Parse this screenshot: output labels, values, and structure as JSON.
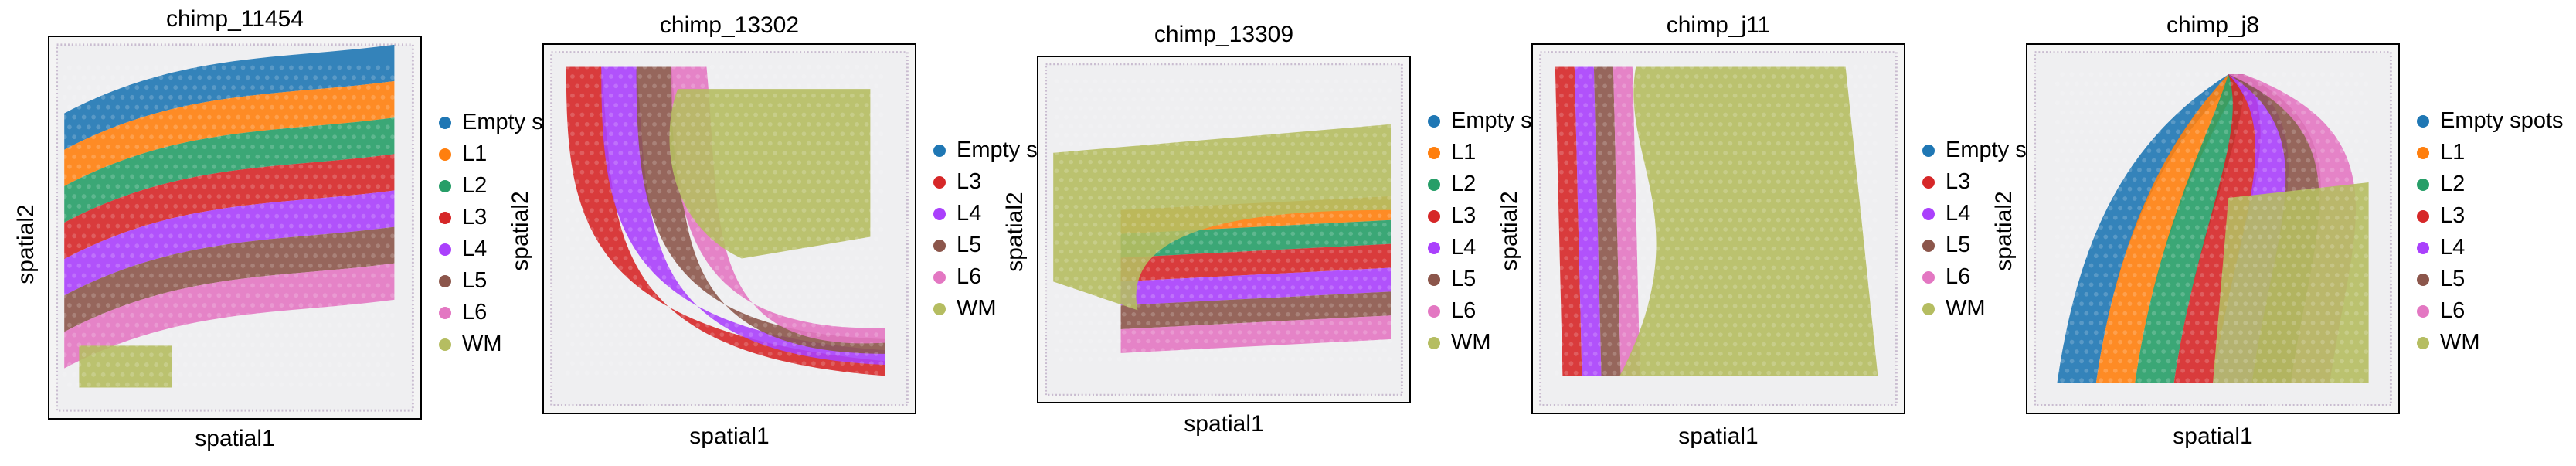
{
  "chart_data": [
    {
      "type": "scatter",
      "title": "chimp_11454",
      "xlabel": "spatial1",
      "ylabel": "spatial2",
      "legend": [
        "Empty s",
        "L1",
        "L2",
        "L3",
        "L4",
        "L5",
        "L6",
        "WM"
      ],
      "layers_top_to_bottom": [
        "Empty s",
        "L1",
        "L2",
        "L3",
        "L4",
        "L5",
        "L6",
        "WM"
      ]
    },
    {
      "type": "scatter",
      "title": "chimp_13302",
      "xlabel": "spatial1",
      "ylabel": "spatial2",
      "legend": [
        "Empty s",
        "L3",
        "L4",
        "L5",
        "L6",
        "WM"
      ],
      "layers_top_to_bottom": [
        "L3",
        "L4",
        "L5",
        "L6",
        "WM"
      ]
    },
    {
      "type": "scatter",
      "title": "chimp_13309",
      "xlabel": "spatial1",
      "ylabel": "spatial2",
      "legend": [
        "Empty s",
        "L1",
        "L2",
        "L3",
        "L4",
        "L5",
        "L6",
        "WM"
      ],
      "layers_top_to_bottom": [
        "L1",
        "L2",
        "L3",
        "L4",
        "L5",
        "L6",
        "WM"
      ]
    },
    {
      "type": "scatter",
      "title": "chimp_j11",
      "xlabel": "spatial1",
      "ylabel": "spatial2",
      "legend": [
        "Empty s",
        "L3",
        "L4",
        "L5",
        "L6",
        "WM"
      ],
      "layers_top_to_bottom": [
        "L3",
        "L4",
        "L5",
        "L6",
        "WM"
      ]
    },
    {
      "type": "scatter",
      "title": "chimp_j8",
      "xlabel": "spatial1",
      "ylabel": "spatial2",
      "legend": [
        "Empty spots",
        "L1",
        "L2",
        "L3",
        "L4",
        "L5",
        "L6",
        "WM"
      ],
      "layers_top_to_bottom": [
        "Empty spots",
        "L1",
        "L2",
        "L3",
        "L4",
        "L5",
        "L6",
        "WM"
      ]
    }
  ],
  "colors": {
    "Empty s": "#1f77b4",
    "Empty spots": "#1f77b4",
    "L1": "#ff7f0e",
    "L2": "#279e68",
    "L3": "#d62728",
    "L4": "#aa40fc",
    "L5": "#8c564b",
    "L6": "#e377c2",
    "WM": "#b5bd61"
  }
}
